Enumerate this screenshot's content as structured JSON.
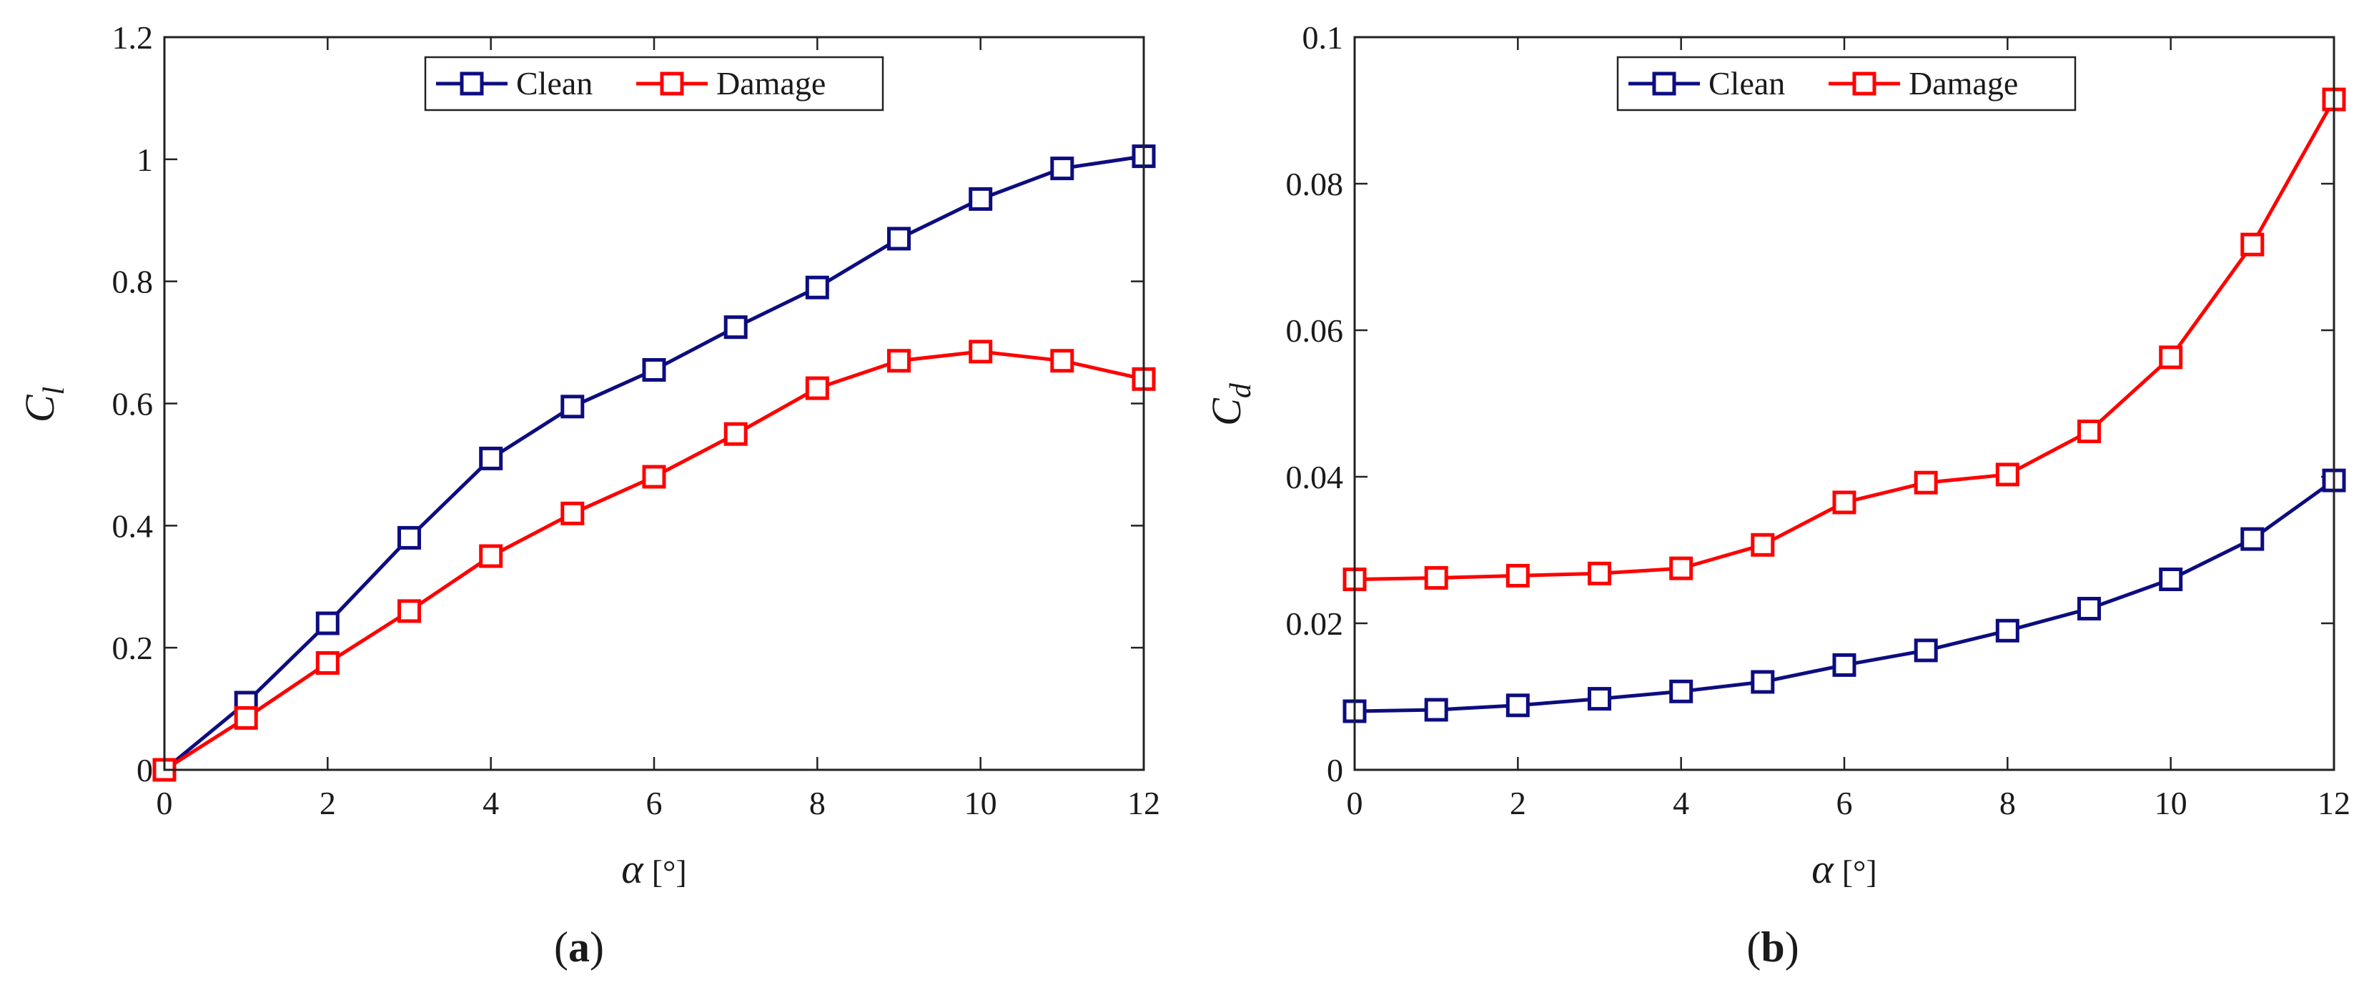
{
  "chart_data": [
    {
      "type": "line",
      "panel_label": "a",
      "x": [
        0,
        1,
        2,
        3,
        4,
        5,
        6,
        7,
        8,
        9,
        10,
        11,
        12
      ],
      "series": [
        {
          "name": "Clean",
          "color": "#0d0d80",
          "marker": "square",
          "values": [
            0.0,
            0.11,
            0.24,
            0.38,
            0.51,
            0.595,
            0.655,
            0.725,
            0.79,
            0.87,
            0.935,
            0.985,
            1.005
          ]
        },
        {
          "name": "Damage",
          "color": "#ff0000",
          "marker": "square",
          "values": [
            0.0,
            0.085,
            0.175,
            0.26,
            0.35,
            0.42,
            0.48,
            0.55,
            0.625,
            0.67,
            0.685,
            0.67,
            0.64
          ]
        }
      ],
      "xlim": [
        0,
        12
      ],
      "ylim": [
        0,
        1.2
      ],
      "xticks": [
        0,
        2,
        4,
        6,
        8,
        10,
        12
      ],
      "xtick_labels": [
        "0",
        "2",
        "4",
        "6",
        "8",
        "10",
        "12"
      ],
      "yticks": [
        0,
        0.2,
        0.4,
        0.6,
        0.8,
        1,
        1.2
      ],
      "ytick_labels": [
        "0",
        "0.2",
        "0.4",
        "0.6",
        "0.8",
        "1",
        "1.2"
      ],
      "xlabel": {
        "symbol": "α",
        "unit": "[°]"
      },
      "ylabel": {
        "symbol": "C",
        "subscript": "l"
      },
      "legend_position": "top-center",
      "grid": false
    },
    {
      "type": "line",
      "panel_label": "b",
      "x": [
        0,
        1,
        2,
        3,
        4,
        5,
        6,
        7,
        8,
        9,
        10,
        11,
        12
      ],
      "series": [
        {
          "name": "Clean",
          "color": "#0d0d80",
          "marker": "square",
          "values": [
            0.008,
            0.0082,
            0.0088,
            0.0097,
            0.0107,
            0.012,
            0.0143,
            0.0163,
            0.019,
            0.022,
            0.026,
            0.0315,
            0.0395
          ]
        },
        {
          "name": "Damage",
          "color": "#ff0000",
          "marker": "square",
          "values": [
            0.026,
            0.0262,
            0.0265,
            0.0268,
            0.0275,
            0.0307,
            0.0365,
            0.0392,
            0.0403,
            0.0462,
            0.0563,
            0.0717,
            0.0915
          ]
        }
      ],
      "xlim": [
        0,
        12
      ],
      "ylim": [
        0,
        0.1
      ],
      "xticks": [
        0,
        2,
        4,
        6,
        8,
        10,
        12
      ],
      "xtick_labels": [
        "0",
        "2",
        "4",
        "6",
        "8",
        "10",
        "12"
      ],
      "yticks": [
        0,
        0.02,
        0.04,
        0.06,
        0.08,
        0.1
      ],
      "ytick_labels": [
        "0",
        "0.02",
        "0.04",
        "0.06",
        "0.08",
        "0.1"
      ],
      "xlabel": {
        "symbol": "α",
        "unit": "[°]"
      },
      "ylabel": {
        "symbol": "C",
        "subscript": "d"
      },
      "legend_position": "top-center",
      "grid": false
    }
  ],
  "captions": {
    "a": {
      "open": "(",
      "letter": "a",
      "close": ")"
    },
    "b": {
      "open": "(",
      "letter": "b",
      "close": ")"
    }
  }
}
